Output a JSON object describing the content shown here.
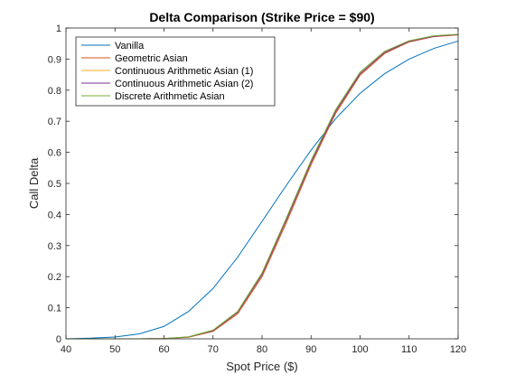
{
  "chart_data": {
    "type": "line",
    "title": "Delta Comparison (Strike Price = $90)",
    "xlabel": "Spot Price ($)",
    "ylabel": "Call Delta",
    "xlim": [
      40,
      120
    ],
    "ylim": [
      0,
      1
    ],
    "xticks": [
      "40",
      "50",
      "60",
      "70",
      "80",
      "90",
      "100",
      "110",
      "120"
    ],
    "yticks": [
      "0",
      "0.1",
      "0.2",
      "0.3",
      "0.4",
      "0.5",
      "0.6",
      "0.7",
      "0.8",
      "0.9",
      "1"
    ],
    "grid": false,
    "legend_position": "top-left",
    "x": [
      40,
      45,
      50,
      55,
      60,
      65,
      70,
      75,
      80,
      85,
      90,
      95,
      100,
      105,
      110,
      115,
      120
    ],
    "series": [
      {
        "name": "Vanilla",
        "color": "#0072BD",
        "values": [
          0.0,
          0.002,
          0.006,
          0.016,
          0.04,
          0.088,
          0.162,
          0.262,
          0.378,
          0.495,
          0.607,
          0.708,
          0.79,
          0.853,
          0.9,
          0.934,
          0.958
        ]
      },
      {
        "name": "Geometric Asian",
        "color": "#D95319",
        "values": [
          0.0,
          0.0,
          0.0,
          0.0,
          0.0006,
          0.005,
          0.024,
          0.08,
          0.2,
          0.375,
          0.56,
          0.725,
          0.848,
          0.918,
          0.955,
          0.972,
          0.978
        ]
      },
      {
        "name": "Continuous Arithmetic Asian (1)",
        "color": "#EDB120",
        "values": [
          0.0,
          0.0,
          0.0,
          0.0,
          0.0008,
          0.006,
          0.026,
          0.085,
          0.207,
          0.384,
          0.568,
          0.731,
          0.853,
          0.921,
          0.957,
          0.973,
          0.979
        ]
      },
      {
        "name": "Continuous Arithmetic Asian (2)",
        "color": "#7E2F8E",
        "values": [
          0.0,
          0.0,
          0.0,
          0.0,
          0.0008,
          0.006,
          0.026,
          0.085,
          0.207,
          0.384,
          0.568,
          0.731,
          0.853,
          0.921,
          0.957,
          0.973,
          0.979
        ]
      },
      {
        "name": "Discrete Arithmetic Asian",
        "color": "#77AC30",
        "values": [
          0.0,
          0.0,
          0.0,
          0.0,
          0.0009,
          0.0065,
          0.028,
          0.088,
          0.212,
          0.39,
          0.574,
          0.737,
          0.858,
          0.925,
          0.959,
          0.975,
          0.98
        ]
      }
    ]
  }
}
